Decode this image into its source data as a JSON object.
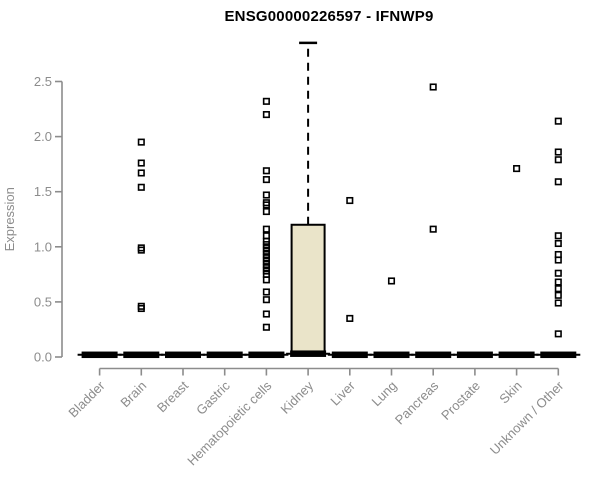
{
  "chart_data": {
    "type": "boxplot",
    "title": "ENSG00000226597 - IFNWP9",
    "ylabel": "Expression",
    "xlabel": "",
    "ylim": [
      0,
      2.9
    ],
    "yticks": [
      "0.0",
      "0.5",
      "1.0",
      "1.5",
      "2.0",
      "2.5"
    ],
    "grid": "off",
    "legend": "none",
    "categories": [
      "Bladder",
      "Brain",
      "Breast",
      "Gastric",
      "Hematopoietic cells",
      "Kidney",
      "Liver",
      "Lung",
      "Pancreas",
      "Prostate",
      "Skin",
      "Unknown / Other"
    ],
    "boxes": [
      {
        "category": "Bladder",
        "q1": 0,
        "median": 0.02,
        "q3": 0,
        "whisker_low": 0,
        "whisker_high": 0,
        "outliers": []
      },
      {
        "category": "Brain",
        "q1": 0,
        "median": 0.02,
        "q3": 0,
        "whisker_low": 0,
        "whisker_high": 0,
        "outliers": [
          1.95,
          1.76,
          1.67,
          1.54,
          0.99,
          0.97,
          0.46,
          0.44
        ]
      },
      {
        "category": "Breast",
        "q1": 0,
        "median": 0.02,
        "q3": 0,
        "whisker_low": 0,
        "whisker_high": 0,
        "outliers": []
      },
      {
        "category": "Gastric",
        "q1": 0,
        "median": 0.02,
        "q3": 0,
        "whisker_low": 0,
        "whisker_high": 0,
        "outliers": []
      },
      {
        "category": "Hematopoietic cells",
        "q1": 0,
        "median": 0.02,
        "q3": 0,
        "whisker_low": 0,
        "whisker_high": 0,
        "outliers": [
          2.32,
          2.2,
          1.69,
          1.61,
          1.47,
          1.4,
          1.38,
          1.32,
          1.16,
          1.1,
          1.05,
          1.02,
          0.99,
          0.96,
          0.93,
          0.9,
          0.87,
          0.84,
          0.81,
          0.78,
          0.75,
          0.7,
          0.59,
          0.52,
          0.39,
          0.27
        ]
      },
      {
        "category": "Kidney",
        "q1": 0.02,
        "median": 0.03,
        "q3": 1.2,
        "whisker_low": 0,
        "whisker_high": 2.85,
        "outliers": []
      },
      {
        "category": "Liver",
        "q1": 0,
        "median": 0.02,
        "q3": 0,
        "whisker_low": 0,
        "whisker_high": 0,
        "outliers": [
          1.42,
          0.35
        ]
      },
      {
        "category": "Lung",
        "q1": 0,
        "median": 0.02,
        "q3": 0,
        "whisker_low": 0,
        "whisker_high": 0,
        "outliers": [
          0.69
        ]
      },
      {
        "category": "Pancreas",
        "q1": 0,
        "median": 0.02,
        "q3": 0,
        "whisker_low": 0,
        "whisker_high": 0,
        "outliers": [
          2.45,
          1.16
        ]
      },
      {
        "category": "Prostate",
        "q1": 0,
        "median": 0.02,
        "q3": 0,
        "whisker_low": 0,
        "whisker_high": 0,
        "outliers": []
      },
      {
        "category": "Skin",
        "q1": 0,
        "median": 0.02,
        "q3": 0,
        "whisker_low": 0,
        "whisker_high": 0,
        "outliers": [
          1.71
        ]
      },
      {
        "category": "Unknown / Other",
        "q1": 0,
        "median": 0.02,
        "q3": 0,
        "whisker_low": 0,
        "whisker_high": 0,
        "outliers": [
          2.14,
          1.86,
          1.79,
          1.59,
          1.1,
          1.03,
          0.93,
          0.88,
          0.76,
          0.68,
          0.62,
          0.56,
          0.49,
          0.21
        ]
      }
    ],
    "colors": {
      "box_fill": "#EAE4C9",
      "box_stroke": "#000000",
      "data_color": "#000000",
      "axis_color": "#8C8C8C",
      "label_color": "#8C8C8C",
      "title_color": "#000000",
      "background": "#FFFFFF"
    }
  }
}
